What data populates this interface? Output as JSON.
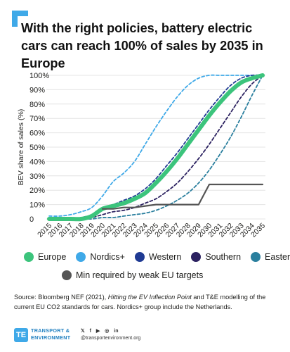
{
  "title": "With the right policies, battery electric cars can reach 100% of sales by 2035 in Europe",
  "chart_data": {
    "type": "line",
    "ylabel": "BEV share of sales (%)",
    "xlabel": "",
    "x": [
      "2015",
      "2016",
      "2017",
      "2018",
      "2019",
      "2020",
      "2021",
      "2022",
      "2023",
      "2024",
      "2025",
      "2026",
      "2027",
      "2028",
      "2029",
      "2030",
      "2031",
      "2032",
      "2033",
      "2034",
      "2035"
    ],
    "y_ticks": [
      "0",
      "10%",
      "20%",
      "30%",
      "40%",
      "50%",
      "60%",
      "70%",
      "80%",
      "90%",
      "100%"
    ],
    "ylim": [
      0,
      100
    ],
    "series": [
      {
        "name": "Nordics+",
        "color": "#3fa9e8",
        "style": "dashed",
        "values": [
          2,
          2,
          3,
          5,
          8,
          16,
          26,
          32,
          40,
          52,
          64,
          75,
          85,
          93,
          98,
          100,
          100,
          100,
          100,
          100,
          100
        ]
      },
      {
        "name": "Western",
        "color": "#1f3a93",
        "style": "dashed",
        "values": [
          0,
          0,
          0,
          1,
          3,
          8,
          10,
          13,
          16,
          21,
          28,
          37,
          46,
          56,
          66,
          76,
          85,
          93,
          98,
          100,
          100
        ]
      },
      {
        "name": "Southern",
        "color": "#2b2160",
        "style": "dashed",
        "values": [
          0,
          0,
          0,
          0,
          1,
          3,
          5,
          6,
          8,
          11,
          14,
          19,
          25,
          33,
          42,
          52,
          63,
          74,
          85,
          94,
          100
        ]
      },
      {
        "name": "Eastern",
        "color": "#2a7f9e",
        "style": "dashed",
        "values": [
          0,
          0,
          0,
          0,
          0,
          1,
          1,
          2,
          3,
          4,
          6,
          9,
          13,
          18,
          25,
          34,
          45,
          57,
          71,
          86,
          100
        ]
      },
      {
        "name": "Europe",
        "color": "#3cc47c",
        "style": "solid",
        "values": [
          0,
          0,
          0,
          0,
          2,
          7,
          9,
          11,
          14,
          18,
          25,
          33,
          42,
          52,
          62,
          72,
          81,
          89,
          95,
          98,
          100
        ]
      },
      {
        "name": "Min required by weak EU targets",
        "color": "#555555",
        "style": "solid",
        "values": [
          null,
          null,
          null,
          null,
          null,
          7,
          7,
          8,
          8,
          9,
          10,
          10,
          10,
          10,
          10,
          24,
          24,
          24,
          24,
          24,
          24
        ]
      }
    ],
    "legend_order_row1": [
      "Europe",
      "Nordics+",
      "Western",
      "Southern",
      "Eastern"
    ],
    "legend_row2": "Min required by weak EU targets"
  },
  "legend": {
    "row1": [
      {
        "label": "Europe",
        "color": "#3cc47c"
      },
      {
        "label": "Nordics+",
        "color": "#3fa9e8"
      },
      {
        "label": "Western",
        "color": "#1f3a93"
      },
      {
        "label": "Southern",
        "color": "#2b2160"
      },
      {
        "label": "Eastern",
        "color": "#2a7f9e"
      }
    ],
    "row2": {
      "label": "Min required by weak EU targets",
      "color": "#555555"
    }
  },
  "source": {
    "prefix": "Source: Bloomberg NEF (2021), ",
    "italic": "Hitting the EV Inflection Point",
    "suffix": " and T&E modelling of the current EU CO2 standards for cars. Nordics+ group include the Netherlands."
  },
  "footer": {
    "brand_line1": "TRANSPORT &",
    "brand_line2": "ENVIRONMENT",
    "handle": "@transportenvironment.org"
  }
}
